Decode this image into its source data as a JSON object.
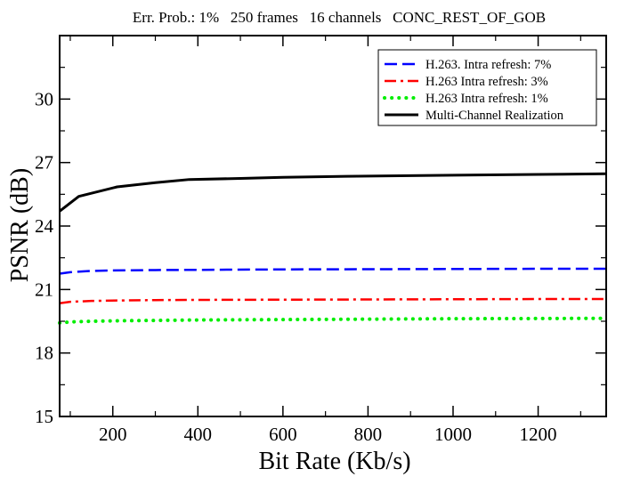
{
  "chart_data": {
    "type": "line",
    "title": "Err. Prob.: 1%   250 frames   16 channels   CONC_REST_OF_GOB",
    "xlabel": "Bit Rate (Kb/s)",
    "ylabel": "PSNR (dB)",
    "xlim": [
      75,
      1360
    ],
    "ylim": [
      15,
      33
    ],
    "xticks": [
      200,
      400,
      600,
      800,
      1000,
      1200
    ],
    "yticks": [
      15,
      18,
      21,
      24,
      27,
      30
    ],
    "grid": false,
    "legend_position": "top-right",
    "series": [
      {
        "name": "H.263. Intra refresh: 7%",
        "color": "#0000ff",
        "style": "dashed",
        "x": [
          75,
          100,
          150,
          200,
          300,
          400,
          600,
          800,
          1000,
          1200,
          1360
        ],
        "y": [
          21.75,
          21.82,
          21.88,
          21.9,
          21.92,
          21.93,
          21.95,
          21.96,
          21.97,
          21.98,
          21.98
        ]
      },
      {
        "name": "H.263 Intra refresh: 3%",
        "color": "#ff0000",
        "style": "dashdot",
        "x": [
          75,
          100,
          150,
          200,
          300,
          400,
          600,
          800,
          1000,
          1200,
          1360
        ],
        "y": [
          20.35,
          20.42,
          20.46,
          20.48,
          20.5,
          20.51,
          20.52,
          20.53,
          20.54,
          20.55,
          20.55
        ]
      },
      {
        "name": "H.263 Intra refresh: 1%",
        "color": "#00ee00",
        "style": "dotted",
        "x": [
          75,
          100,
          150,
          200,
          300,
          400,
          600,
          800,
          1000,
          1200,
          1360
        ],
        "y": [
          19.42,
          19.47,
          19.5,
          19.52,
          19.54,
          19.56,
          19.58,
          19.6,
          19.62,
          19.63,
          19.64
        ]
      },
      {
        "name": "Multi-Channel Realization",
        "color": "#000000",
        "style": "solid",
        "x": [
          75,
          120,
          210,
          300,
          380,
          500,
          600,
          750,
          900,
          1000,
          1200,
          1360
        ],
        "y": [
          24.7,
          25.4,
          25.85,
          26.05,
          26.2,
          26.25,
          26.3,
          26.35,
          26.38,
          26.4,
          26.44,
          26.47
        ]
      }
    ]
  }
}
